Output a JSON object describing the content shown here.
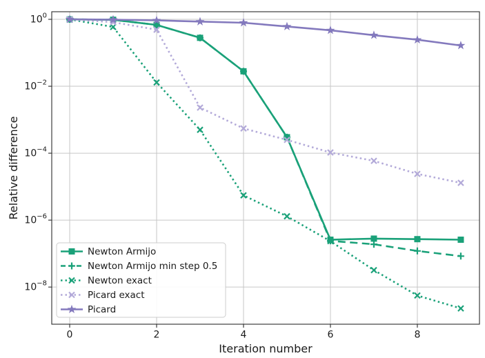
{
  "chart_data": {
    "type": "line",
    "title": "",
    "xlabel": "Iteration number",
    "ylabel": "Relative difference",
    "x_scale": "linear",
    "y_scale": "log",
    "grid": true,
    "x": [
      0,
      1,
      2,
      3,
      4,
      5,
      6,
      7,
      8,
      9
    ],
    "series": [
      {
        "name": "Newton Armijo",
        "color": "#1aa179",
        "linestyle": "solid",
        "marker": "square",
        "values": [
          1.0,
          0.97,
          0.68,
          0.28,
          0.028,
          0.0003,
          2.6e-07,
          2.8e-07,
          2.7e-07,
          2.6e-07
        ]
      },
      {
        "name": "Newton Armijo min step 0.5",
        "color": "#1aa179",
        "linestyle": "dashed",
        "marker": "plus",
        "values": [
          1.0,
          0.97,
          0.68,
          0.28,
          0.028,
          0.0003,
          2.4e-07,
          1.9e-07,
          1.2e-07,
          8.4e-08
        ]
      },
      {
        "name": "Newton exact",
        "color": "#1aa179",
        "linestyle": "dotted",
        "marker": "x",
        "values": [
          1.0,
          0.59,
          0.013,
          0.0005,
          5.5e-06,
          1.3e-06,
          2.35e-07,
          3.2e-08,
          5.6e-09,
          2.3e-09
        ]
      },
      {
        "name": "Picard exact",
        "color": "#b3aad9",
        "linestyle": "dotted",
        "marker": "x",
        "values": [
          1.0,
          0.82,
          0.49,
          0.0023,
          0.00055,
          0.00025,
          0.000105,
          5.9e-05,
          2.4e-05,
          1.3e-05
        ]
      },
      {
        "name": "Picard",
        "color": "#8379bd",
        "linestyle": "solid",
        "marker": "star",
        "values": [
          1.0,
          0.975,
          0.93,
          0.855,
          0.79,
          0.61,
          0.47,
          0.335,
          0.245,
          0.165
        ]
      }
    ],
    "xticks": [
      0,
      2,
      4,
      6,
      8
    ],
    "ytick_exponents": [
      0,
      -2,
      -4,
      -6,
      -8
    ],
    "xlim": [
      -0.413,
      9.43
    ],
    "ylim_exp": [
      0.227,
      -9.11
    ],
    "legend": {
      "position": "lower left",
      "labels": [
        "Newton Armijo",
        "Newton Armijo min step 0.5",
        "Newton exact",
        "Picard exact",
        "Picard"
      ]
    }
  }
}
